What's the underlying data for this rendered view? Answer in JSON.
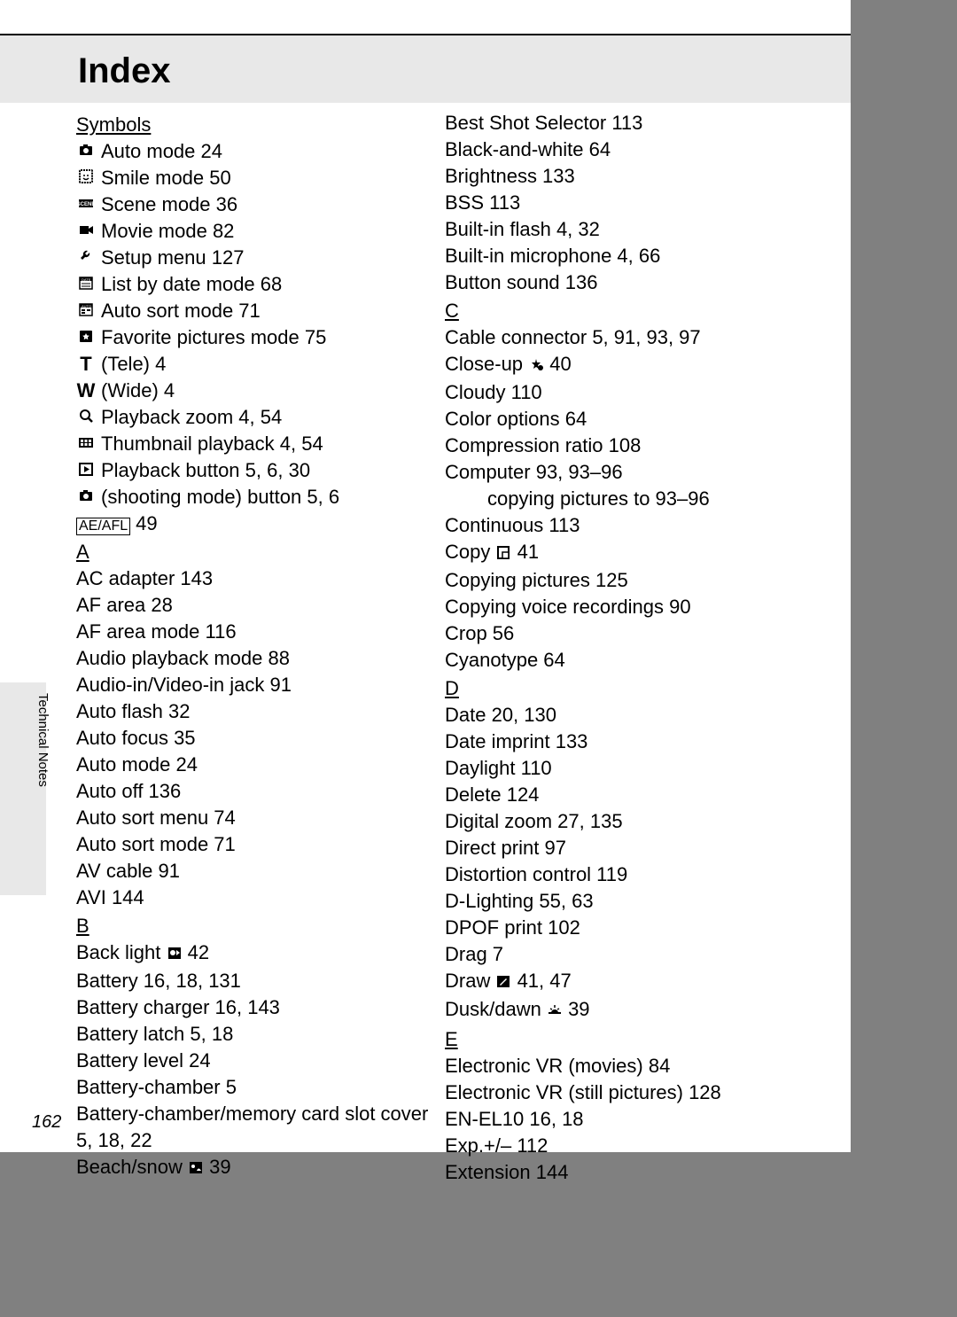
{
  "page": {
    "title": "Index",
    "side_label": "Technical Notes",
    "page_number": "162",
    "colors": {
      "page_bg": "#808080",
      "paper_bg": "#ffffff",
      "band_bg": "#e8e8e8",
      "text": "#000000"
    },
    "font_size_body": 22,
    "font_size_title": 40
  },
  "symbols": {
    "heading": "Symbols",
    "items": [
      {
        "icon": "camera",
        "text": "Auto mode 24"
      },
      {
        "icon": "smile",
        "text": "Smile mode 50"
      },
      {
        "icon": "scene",
        "text": "Scene mode 36"
      },
      {
        "icon": "movie",
        "text": "Movie mode 82"
      },
      {
        "icon": "wrench",
        "text": "Setup menu 127"
      },
      {
        "icon": "list-date",
        "text": "List by date mode 68"
      },
      {
        "icon": "auto-sort",
        "text": "Auto sort mode 71"
      },
      {
        "icon": "favorite",
        "text": "Favorite pictures mode 75"
      },
      {
        "icon": "T",
        "bold_icon": true,
        "text": "(Tele) 4"
      },
      {
        "icon": "W",
        "bold_icon": true,
        "text": "(Wide) 4"
      },
      {
        "icon": "magnify",
        "text": "Playback zoom 4, 54"
      },
      {
        "icon": "thumbnail",
        "text": "Thumbnail playback 4, 54"
      },
      {
        "icon": "play",
        "text": "Playback button 5, 6, 30"
      },
      {
        "icon": "camera",
        "text": "(shooting mode) button 5, 6"
      },
      {
        "icon": "aeafl",
        "text": "49"
      }
    ]
  },
  "sections_left": [
    {
      "letter": "A",
      "items": [
        "AC adapter 143",
        "AF area 28",
        "AF area mode 116",
        "Audio playback mode 88",
        "Audio-in/Video-in jack 91",
        "Auto flash 32",
        "Auto focus 35",
        "Auto mode 24",
        "Auto off 136",
        "Auto sort menu 74",
        "Auto sort mode 71",
        "AV cable 91",
        "AVI 144"
      ]
    },
    {
      "letter": "B",
      "items_rich": [
        {
          "pre": "Back light ",
          "icon": "backlight",
          "post": " 42"
        },
        {
          "pre": "Battery 16, 18, 131"
        },
        {
          "pre": "Battery charger 16, 143"
        },
        {
          "pre": "Battery latch 5, 18"
        },
        {
          "pre": "Battery level 24"
        },
        {
          "pre": "Battery-chamber 5"
        },
        {
          "pre": "Battery-chamber/memory card slot cover 5, 18, 22"
        },
        {
          "pre": "Beach/snow ",
          "icon": "beach",
          "post": " 39"
        }
      ]
    }
  ],
  "right_top": [
    "Best Shot Selector 113",
    "Black-and-white 64",
    "Brightness 133",
    "BSS 113",
    "Built-in flash 4, 32",
    "Built-in microphone 4, 66",
    "Button sound 136"
  ],
  "sections_right": [
    {
      "letter": "C",
      "items_rich": [
        {
          "pre": "Cable connector 5, 91, 93, 97"
        },
        {
          "pre": "Close-up ",
          "icon": "closeup",
          "post": " 40"
        },
        {
          "pre": "Cloudy 110"
        },
        {
          "pre": "Color options 64"
        },
        {
          "pre": "Compression ratio 108"
        },
        {
          "pre": "Computer 93, 93–96"
        },
        {
          "pre": "copying pictures to 93–96",
          "indent": true
        },
        {
          "pre": "Continuous 113"
        },
        {
          "pre": "Copy ",
          "icon": "copy",
          "post": " 41"
        },
        {
          "pre": "Copying pictures 125"
        },
        {
          "pre": "Copying voice recordings 90"
        },
        {
          "pre": "Crop 56"
        },
        {
          "pre": "Cyanotype 64"
        }
      ]
    },
    {
      "letter": "D",
      "items_rich": [
        {
          "pre": "Date 20, 130"
        },
        {
          "pre": "Date imprint 133"
        },
        {
          "pre": "Daylight 110"
        },
        {
          "pre": "Delete 124"
        },
        {
          "pre": "Digital zoom 27, 135"
        },
        {
          "pre": "Direct print 97"
        },
        {
          "pre": "Distortion control 119"
        },
        {
          "pre": "D-Lighting 55, 63"
        },
        {
          "pre": "DPOF print 102"
        },
        {
          "pre": "Drag 7"
        },
        {
          "pre": "Draw ",
          "icon": "draw",
          "post": " 41, 47"
        },
        {
          "pre": "Dusk/dawn ",
          "icon": "dusk",
          "post": " 39"
        }
      ]
    },
    {
      "letter": "E",
      "items": [
        "Electronic VR (movies) 84",
        "Electronic VR (still pictures) 128",
        "EN-EL10 16, 18",
        "Exp.+/– 112",
        "Extension 144"
      ]
    }
  ],
  "icons": {
    "camera": "camera-icon",
    "smile": "smile-icon",
    "scene": "scene-icon",
    "movie": "movie-icon",
    "wrench": "wrench-icon",
    "list-date": "list-date-icon",
    "auto-sort": "auto-sort-icon",
    "favorite": "favorite-icon",
    "magnify": "magnify-icon",
    "thumbnail": "thumbnail-icon",
    "play": "play-icon",
    "aeafl": "AE/AFL",
    "backlight": "backlight-icon",
    "beach": "beach-icon",
    "closeup": "closeup-icon",
    "copy": "copy-icon",
    "draw": "draw-icon",
    "dusk": "dusk-icon"
  }
}
